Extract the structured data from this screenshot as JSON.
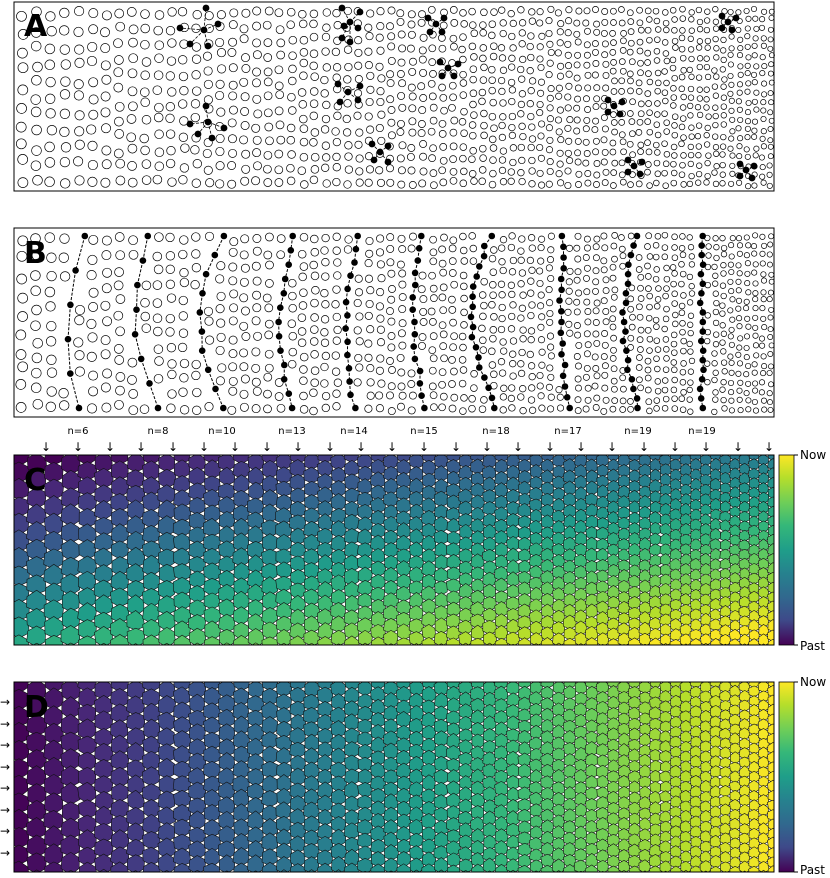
{
  "panels": {
    "a": {
      "letter": "A"
    },
    "b": {
      "letter": "B"
    },
    "c": {
      "letter": "C"
    },
    "d": {
      "letter": "D"
    }
  },
  "chain_labels": [
    "n=6",
    "n=8",
    "n=10",
    "n=13",
    "n=14",
    "n=15",
    "n=18",
    "n=17",
    "n=19",
    "n=19"
  ],
  "colorbar": {
    "top_label": "Now",
    "bottom_label": "Past"
  },
  "arrows": {
    "down": "↓",
    "right": "→"
  },
  "colormap": [
    "#fde725",
    "#b5de2b",
    "#6ece58",
    "#35b779",
    "#1f9e89",
    "#26828e",
    "#31688e",
    "#3e4989",
    "#482878",
    "#440154"
  ]
}
